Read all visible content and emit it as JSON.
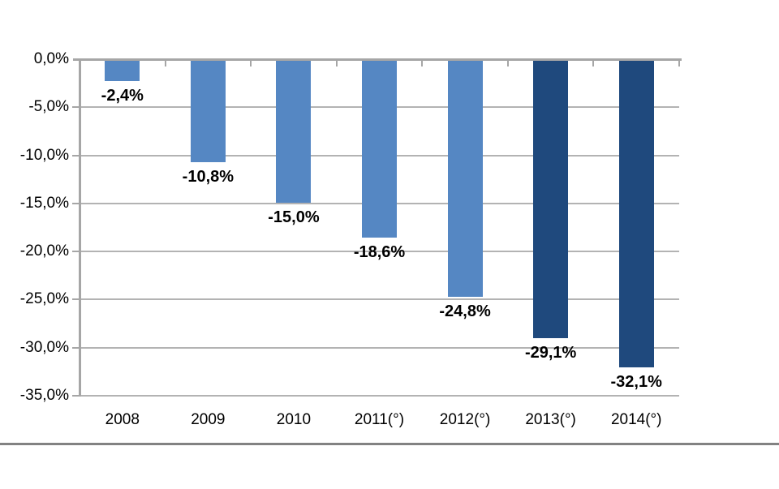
{
  "chart_data": {
    "type": "bar",
    "title": "",
    "xlabel": "",
    "ylabel": "",
    "categories": [
      "2008",
      "2009",
      "2010",
      "2011(°)",
      "2012(°)",
      "2013(°)",
      "2014(°)"
    ],
    "values": [
      -2.4,
      -10.8,
      -15.0,
      -18.6,
      -24.8,
      -29.1,
      -32.1
    ],
    "data_labels": [
      "-2,4%",
      "-10,8%",
      "-15,0%",
      "-18,6%",
      "-24,8%",
      "-29,1%",
      "-32,1%"
    ],
    "bar_colors": [
      "#5587C3",
      "#5587C3",
      "#5587C3",
      "#5587C3",
      "#5587C3",
      "#1F497D",
      "#1F497D"
    ],
    "ylim": [
      -35,
      0
    ],
    "ytick_step": 5,
    "ytick_labels": [
      "0,0%",
      "-5,0%",
      "-10,0%",
      "-15,0%",
      "-20,0%",
      "-25,0%",
      "-30,0%",
      "-35,0%"
    ],
    "grid": true,
    "legend": false,
    "colors": {
      "light_bar": "#5587C3",
      "dark_bar": "#1F497D",
      "gridline": "#B3B3B3",
      "axis_line": "#A6A6A6",
      "label_text": "#000000",
      "separator_line": "#828282",
      "background": "#FFFFFF"
    }
  }
}
